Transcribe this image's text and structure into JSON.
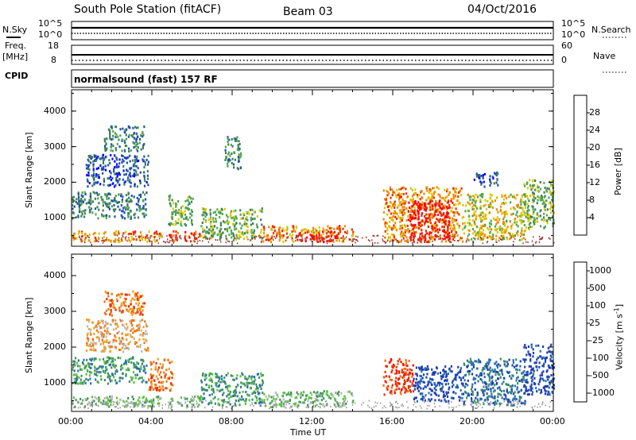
{
  "header": {
    "title": "South Pole Station (fitACF)",
    "beam": "Beam 03",
    "date": "04/Oct/2016"
  },
  "top_panel": {
    "left_label": "N.Sky",
    "right_label": "N.Search",
    "left_ticks": [
      "10^5",
      "10^0"
    ],
    "right_ticks": [
      "10^5",
      "10^0"
    ]
  },
  "freq_panel": {
    "left_label_1": "Freq.",
    "left_label_2": "[MHz]",
    "left_ticks": [
      "18",
      "8"
    ],
    "right_label": "Nave",
    "right_ticks": [
      "60",
      "0"
    ]
  },
  "cpid_label": "CPID",
  "cpid_text": "normalsound (fast) 157 RF",
  "colors": {
    "grid": "#000000",
    "ground_scatter": "#999999"
  },
  "chart_data": [
    {
      "type": "heatmap",
      "name": "power",
      "ylabel": "Slant Range [km]",
      "yticks": [
        "1000",
        "2000",
        "3000",
        "4000"
      ],
      "ylim": [
        200,
        4600
      ],
      "xlim": [
        0,
        24
      ],
      "colorbar": {
        "label": "Power [dB]",
        "ticks": [
          "4",
          "8",
          "12",
          "16",
          "20",
          "24",
          "28"
        ],
        "colors": [
          "#0000ff",
          "#1f4fb0",
          "#3f7f5a",
          "#4fa850",
          "#d9c800",
          "#f08a00",
          "#e83000",
          "#ff0000"
        ]
      },
      "scatter_regions": [
        {
          "t0": 0.0,
          "t1": 3.7,
          "r0": 1000,
          "r1": 1750,
          "level": 2
        },
        {
          "t0": 0.0,
          "t1": 4.5,
          "r0": 350,
          "r1": 650,
          "level": 5
        },
        {
          "t0": 0.7,
          "t1": 3.8,
          "r0": 1900,
          "r1": 2800,
          "level": 1
        },
        {
          "t0": 1.6,
          "t1": 3.6,
          "r0": 2900,
          "r1": 3600,
          "level": 2
        },
        {
          "t0": 4.8,
          "t1": 6.0,
          "r0": 800,
          "r1": 1700,
          "level": 3
        },
        {
          "t0": 4.8,
          "t1": 6.4,
          "r0": 350,
          "r1": 650,
          "level": 6
        },
        {
          "t0": 6.4,
          "t1": 9.5,
          "r0": 400,
          "r1": 1300,
          "level": 3
        },
        {
          "t0": 7.6,
          "t1": 8.4,
          "r0": 2400,
          "r1": 3300,
          "level": 2
        },
        {
          "t0": 9.5,
          "t1": 14.0,
          "r0": 350,
          "r1": 800,
          "level": 5
        },
        {
          "t0": 11.2,
          "t1": 13.4,
          "r0": 350,
          "r1": 650,
          "level": 7
        },
        {
          "t0": 15.5,
          "t1": 19.5,
          "r0": 350,
          "r1": 1900,
          "level": 5
        },
        {
          "t0": 16.7,
          "t1": 18.9,
          "r0": 400,
          "r1": 1500,
          "level": 7
        },
        {
          "t0": 19.5,
          "t1": 22.6,
          "r0": 400,
          "r1": 1700,
          "level": 4
        },
        {
          "t0": 22.5,
          "t1": 24.0,
          "r0": 700,
          "r1": 2100,
          "level": 3
        },
        {
          "t0": 20.0,
          "t1": 21.2,
          "r0": 1900,
          "r1": 2300,
          "level": 1
        }
      ]
    },
    {
      "type": "heatmap",
      "name": "velocity",
      "ylabel": "Slant Range [km]",
      "yticks": [
        "1000",
        "2000",
        "3000",
        "4000"
      ],
      "ylim": [
        200,
        4600
      ],
      "xlim": [
        0,
        24
      ],
      "xticks": [
        "00:00",
        "04:00",
        "08:00",
        "12:00",
        "16:00",
        "20:00",
        "00:00"
      ],
      "xlabel": "Time UT",
      "colorbar": {
        "label": "Velocity [m s^-1]",
        "ticks": [
          "1000",
          "500",
          "100",
          "25",
          "-25",
          "-100",
          "-500",
          "-1000"
        ],
        "colors": [
          "#1f3fb0",
          "#2a6fb0",
          "#3f8f60",
          "#5ac040",
          "#b8b8b8",
          "#f0a020",
          "#f07010",
          "#e83000",
          "#ff0000"
        ]
      },
      "scatter_regions": [
        {
          "t0": 0.0,
          "t1": 3.7,
          "r0": 1000,
          "r1": 1750,
          "level": 2
        },
        {
          "t0": 0.0,
          "t1": 4.5,
          "r0": 350,
          "r1": 650,
          "level": 3
        },
        {
          "t0": 0.7,
          "t1": 3.8,
          "r0": 1900,
          "r1": 2800,
          "level": 5
        },
        {
          "t0": 1.6,
          "t1": 3.6,
          "r0": 2900,
          "r1": 3600,
          "level": 6
        },
        {
          "t0": 3.8,
          "t1": 5.0,
          "r0": 800,
          "r1": 1700,
          "level": 6
        },
        {
          "t0": 4.8,
          "t1": 6.4,
          "r0": 350,
          "r1": 650,
          "level": 3
        },
        {
          "t0": 6.4,
          "t1": 9.5,
          "r0": 400,
          "r1": 1300,
          "level": 2
        },
        {
          "t0": 9.5,
          "t1": 14.0,
          "r0": 350,
          "r1": 800,
          "level": 3
        },
        {
          "t0": 15.5,
          "t1": 17.0,
          "r0": 700,
          "r1": 1700,
          "level": 7
        },
        {
          "t0": 17.0,
          "t1": 19.5,
          "r0": 500,
          "r1": 1500,
          "level": 0
        },
        {
          "t0": 19.5,
          "t1": 22.6,
          "r0": 400,
          "r1": 1700,
          "level": 1
        },
        {
          "t0": 22.5,
          "t1": 24.0,
          "r0": 700,
          "r1": 2100,
          "level": 0
        }
      ]
    }
  ]
}
